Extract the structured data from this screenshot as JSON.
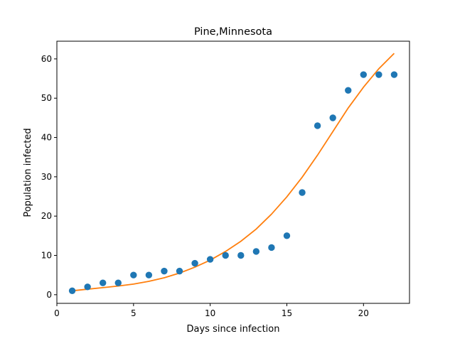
{
  "chart_data": {
    "type": "scatter",
    "title": "Pine,Minnesota",
    "xlabel": "Days since infection",
    "ylabel": "Population infected",
    "xlim": [
      0,
      23
    ],
    "ylim": [
      -2.2,
      64.5
    ],
    "xticks": [
      0,
      5,
      10,
      15,
      20
    ],
    "yticks": [
      0,
      10,
      20,
      30,
      40,
      50,
      60
    ],
    "grid": false,
    "series": [
      {
        "kind": "points",
        "color": "#1f77b4",
        "x": [
          1,
          2,
          3,
          4,
          5,
          6,
          7,
          8,
          9,
          10,
          11,
          12,
          13,
          14,
          15,
          16,
          17,
          18,
          19,
          20,
          21,
          22
        ],
        "y": [
          1,
          2,
          3,
          3,
          5,
          5,
          6,
          6,
          8,
          9,
          10,
          10,
          11,
          12,
          15,
          26,
          43,
          45,
          52,
          56,
          56,
          56
        ]
      },
      {
        "kind": "line",
        "color": "#ff7f0e",
        "x": [
          1,
          2,
          3,
          4,
          5,
          6,
          7,
          8,
          9,
          10,
          11,
          12,
          13,
          14,
          15,
          16,
          17,
          18,
          19,
          20,
          21,
          22
        ],
        "y": [
          1.0,
          1.4,
          1.8,
          2.2,
          2.7,
          3.4,
          4.3,
          5.5,
          7.0,
          8.8,
          11.0,
          13.6,
          16.7,
          20.5,
          24.9,
          29.9,
          35.5,
          41.5,
          47.5,
          52.8,
          57.5,
          61.4
        ]
      }
    ]
  }
}
